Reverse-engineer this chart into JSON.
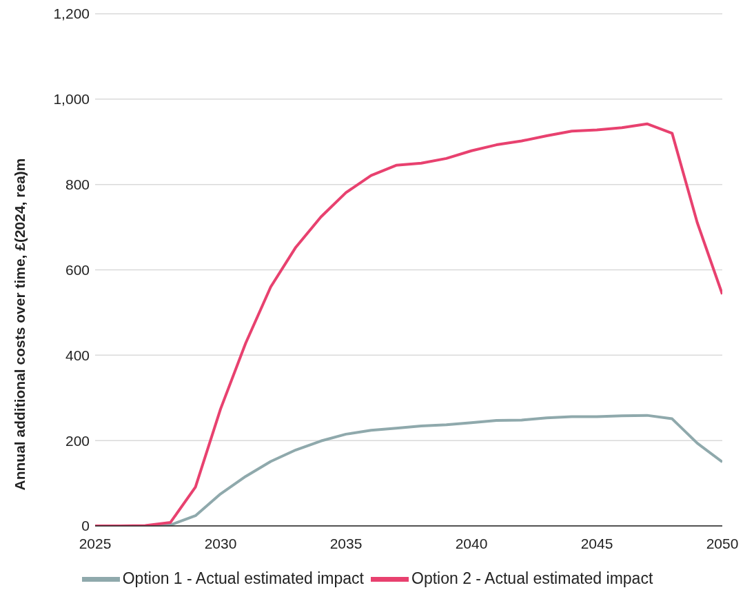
{
  "chart_data": {
    "type": "line",
    "ylabel": "Annual additional costs over time, £(2024, rea)m",
    "x": [
      2025,
      2026,
      2027,
      2028,
      2029,
      2030,
      2031,
      2032,
      2033,
      2034,
      2035,
      2036,
      2037,
      2038,
      2039,
      2040,
      2041,
      2042,
      2043,
      2044,
      2045,
      2046,
      2047,
      2048,
      2049,
      2050
    ],
    "series": [
      {
        "name": "Option 1 - Actual estimated impact",
        "color": "#8fa9ac",
        "values": [
          null,
          null,
          0,
          2,
          24,
          75,
          116,
          151,
          178,
          199,
          215,
          224,
          229,
          234,
          237,
          242,
          247,
          248,
          253,
          256,
          256,
          258,
          259,
          251,
          194,
          150
        ]
      },
      {
        "name": "Option 2 - Actual estimated impact",
        "color": "#e8416f",
        "values": [
          0,
          0,
          1,
          8,
          91,
          274,
          428,
          560,
          653,
          724,
          781,
          821,
          845,
          850,
          861,
          879,
          893,
          902,
          914,
          925,
          928,
          933,
          942,
          920,
          711,
          543
        ]
      }
    ],
    "xlim": [
      2025,
      2050
    ],
    "xticks": [
      2025,
      2030,
      2035,
      2040,
      2045,
      2050
    ],
    "ylim": [
      0,
      1200
    ],
    "yticks": [
      {
        "value": 0,
        "label": "0"
      },
      {
        "value": 200,
        "label": "200"
      },
      {
        "value": 400,
        "label": "400"
      },
      {
        "value": 600,
        "label": "600"
      },
      {
        "value": 800,
        "label": "800"
      },
      {
        "value": 1000,
        "label": "1,000"
      },
      {
        "value": 1200,
        "label": "1,200"
      }
    ],
    "grid": "y",
    "legend": "bottom",
    "marker": "none",
    "line_style": "solid"
  }
}
